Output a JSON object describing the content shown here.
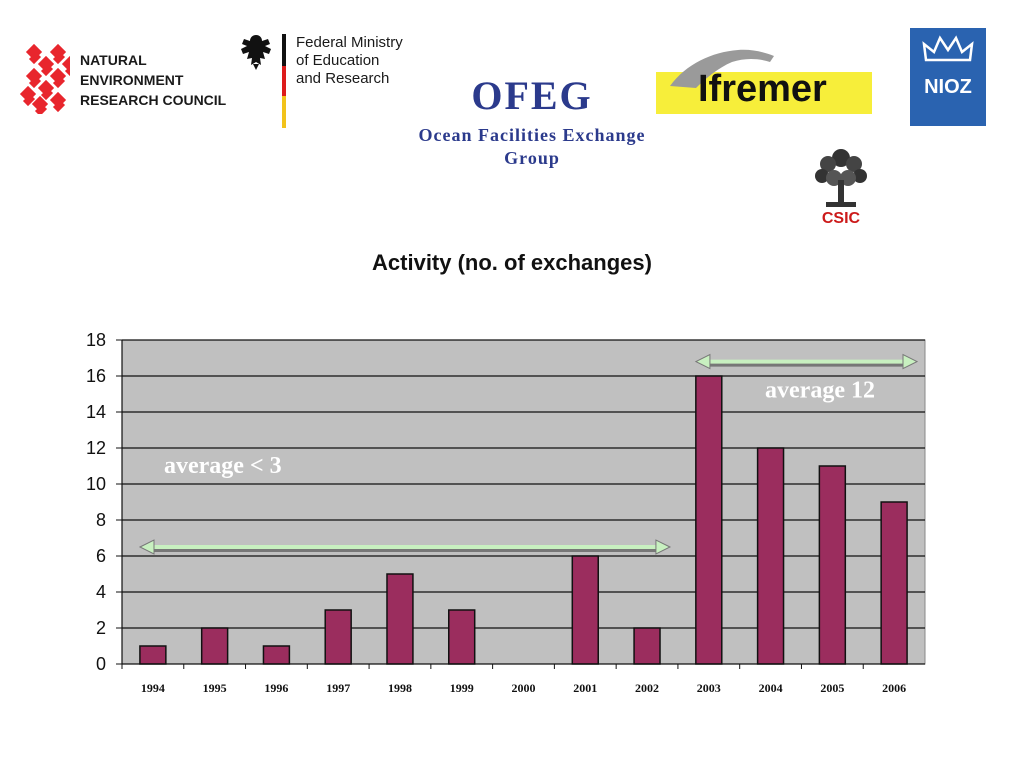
{
  "header": {
    "nerc_logo": {
      "lines": [
        "NATURAL",
        "ENVIRONMENT",
        "RESEARCH COUNCIL"
      ],
      "color": "#e8262d"
    },
    "bmbf_logo": {
      "lines": [
        "Federal Ministry",
        "of Education",
        "and Research"
      ]
    },
    "ofeg_title": "OFEG",
    "ofeg_subtitle_lines": [
      "Ocean Facilities Exchange",
      "Group"
    ],
    "ifremer_logo": {
      "text": "Ifremer",
      "color": "#f7ee3a"
    },
    "nioz_logo": {
      "text": "NIOZ",
      "color": "#2a63b0"
    },
    "csic_logo": {
      "text": "CSIC",
      "color": "#cc1a1a"
    }
  },
  "chart_data": {
    "type": "bar",
    "title": "Activity (no. of exchanges)",
    "categories": [
      "1994",
      "1995",
      "1996",
      "1997",
      "1998",
      "1999",
      "2000",
      "2001",
      "2002",
      "2003",
      "2004",
      "2005",
      "2006"
    ],
    "values": [
      1,
      2,
      1,
      3,
      5,
      3,
      0,
      6,
      2,
      16,
      12,
      11,
      9
    ],
    "ylim": [
      0,
      18
    ],
    "yticks": [
      0,
      2,
      4,
      6,
      8,
      10,
      12,
      14,
      16,
      18
    ],
    "grid": true,
    "bar_color": "#9b2d5e",
    "plot_background": "#c0c0c0",
    "arrow_color": "#c8f0c0",
    "annotations": [
      {
        "text": "average < 3",
        "x_from": "1994",
        "x_to": "2002",
        "y": 6.5
      },
      {
        "text": "average 12",
        "x_from": "2003",
        "x_to": "2006",
        "y": 16.8
      }
    ]
  }
}
